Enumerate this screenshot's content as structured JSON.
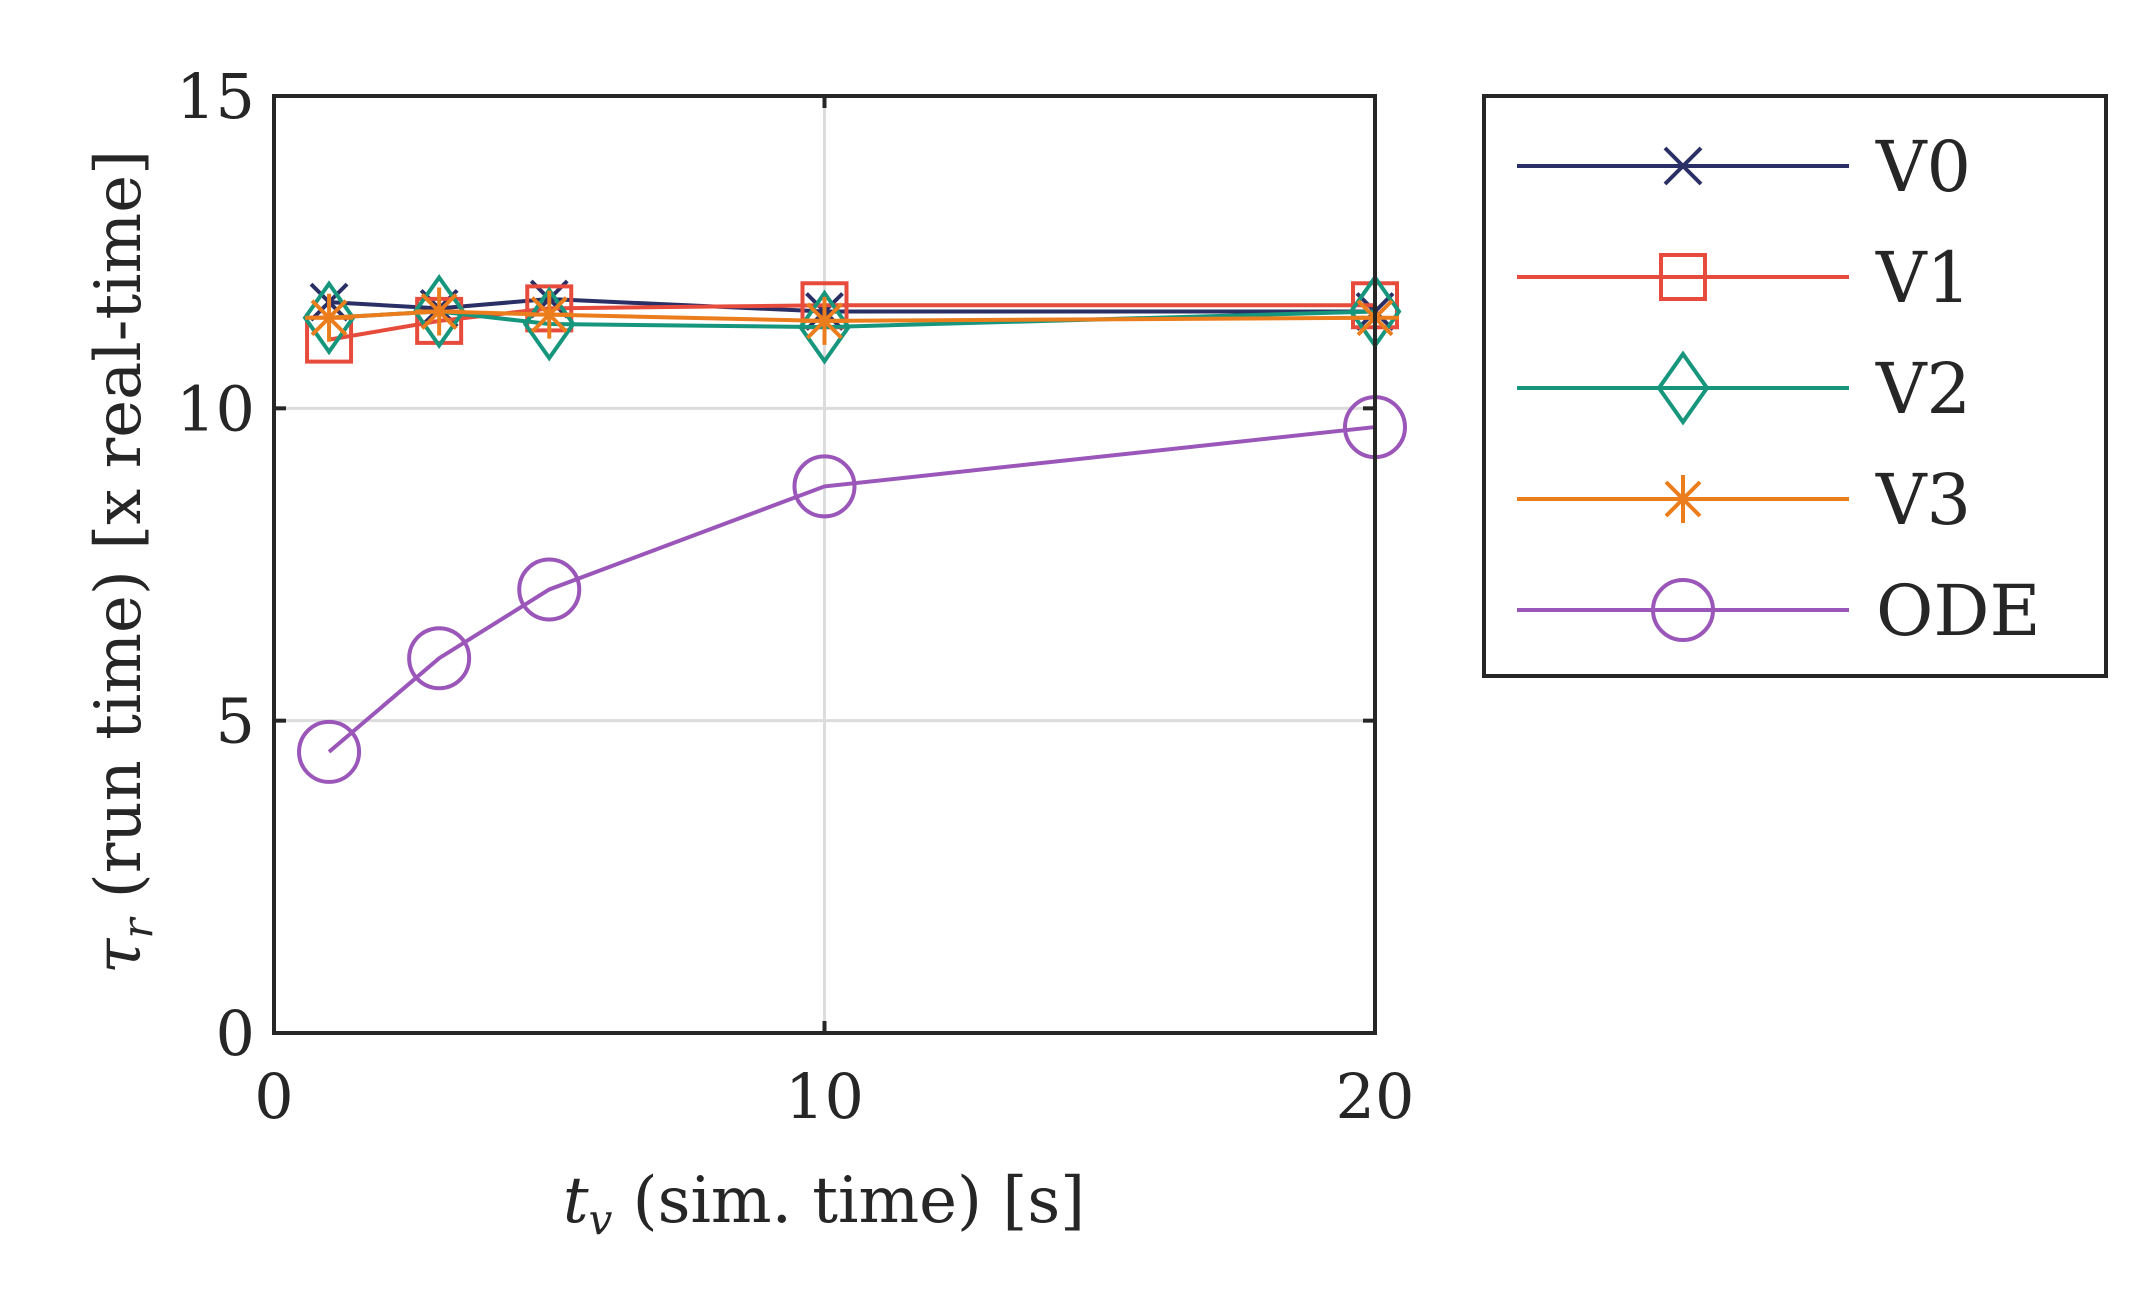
{
  "chart_data": {
    "type": "line",
    "xlabel_var": "t",
    "xlabel_sub": "v",
    "xlabel_text": " (sim. time) [s]",
    "ylabel_var": "τ",
    "ylabel_sub": "r",
    "ylabel_text": " (run time) [x real-time]",
    "xlim": [
      0,
      20
    ],
    "ylim": [
      0,
      15
    ],
    "xticks": [
      0,
      10,
      20
    ],
    "yticks": [
      0,
      5,
      10,
      15
    ],
    "grid": "on",
    "legend_position": "outside-right-top",
    "x": [
      1,
      3,
      5,
      10,
      20
    ],
    "series": [
      {
        "name": "V0",
        "color": "#2a2f66",
        "marker": "x",
        "values": [
          11.7,
          11.6,
          11.75,
          11.55,
          11.55
        ]
      },
      {
        "name": "V1",
        "color": "#e64b3c",
        "marker": "square",
        "values": [
          11.1,
          11.4,
          11.6,
          11.65,
          11.65
        ]
      },
      {
        "name": "V2",
        "color": "#16967c",
        "marker": "diamond",
        "values": [
          11.45,
          11.55,
          11.35,
          11.3,
          11.55
        ]
      },
      {
        "name": "V3",
        "color": "#ec7d1c",
        "marker": "star",
        "values": [
          11.45,
          11.55,
          11.5,
          11.4,
          11.45
        ]
      },
      {
        "name": "ODE",
        "color": "#9a56b8",
        "marker": "circle",
        "values": [
          4.5,
          6.0,
          7.1,
          8.75,
          9.7
        ]
      }
    ]
  }
}
